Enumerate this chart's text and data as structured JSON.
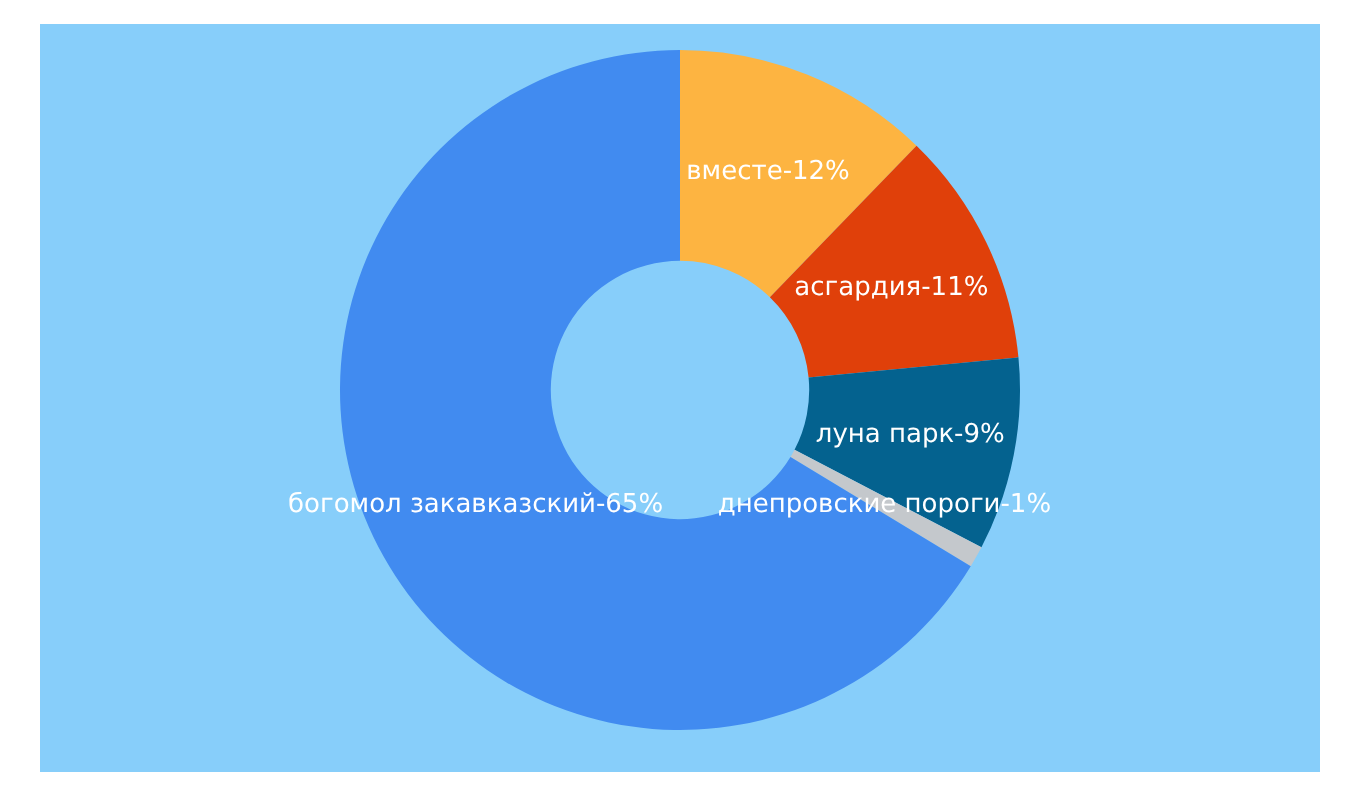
{
  "chart_data": {
    "type": "donut",
    "categories": [
      "вместе",
      "асгардия",
      "луна парк",
      "днепровские пороги",
      "богомол закавказский"
    ],
    "values": [
      12,
      11,
      9,
      1,
      65
    ],
    "colors": [
      "#fdb441",
      "#e0400a",
      "#04628f",
      "#c4c8cc",
      "#418bf0"
    ],
    "value_labels": [
      "12%",
      "11%",
      "9%",
      "1%",
      "65%"
    ],
    "legend": false
  }
}
